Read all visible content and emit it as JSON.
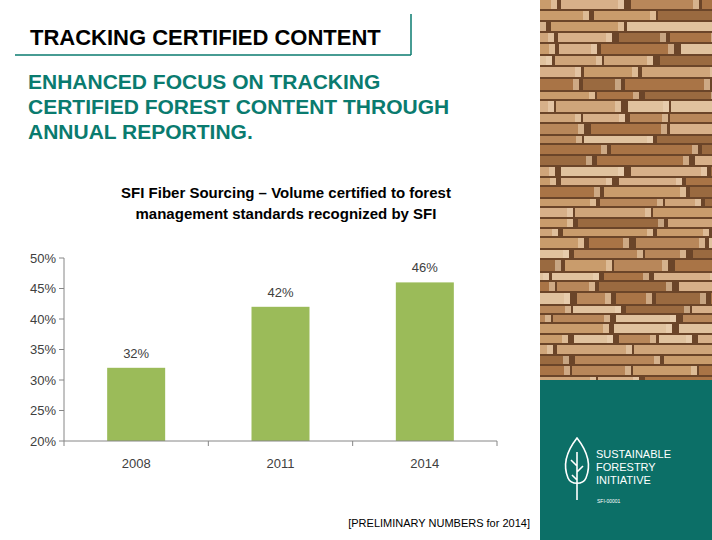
{
  "header": {
    "section": "TRACKING CERTIFIED CONTENT",
    "headline": [
      "ENHANCED FOCUS ON TRACKING",
      "CERTIFIED FOREST CONTENT THROUGH",
      "ANNUAL REPORTING."
    ]
  },
  "chart_data": {
    "type": "bar",
    "title": "SFI Fiber Sourcing – Volume certified to forest management standards recognized by SFI",
    "categories": [
      "2008",
      "2011",
      "2014"
    ],
    "values": [
      32,
      42,
      46
    ],
    "value_labels": [
      "32%",
      "42%",
      "46%"
    ],
    "color": "#9bbb59",
    "ylim": [
      20,
      50
    ],
    "yticks": [
      {
        "value": 20,
        "label": "20%"
      },
      {
        "value": 25,
        "label": "25%"
      },
      {
        "value": 30,
        "label": "30%"
      },
      {
        "value": 35,
        "label": "35%"
      },
      {
        "value": 40,
        "label": "40%"
      },
      {
        "value": 45,
        "label": "45%"
      },
      {
        "value": 50,
        "label": "50%"
      }
    ],
    "grid": false,
    "data_labels": true
  },
  "footnote": "[PRELIMINARY NUMBERS for 2014]",
  "logo": {
    "lines": [
      "SUSTAINABLE",
      "FORESTRY",
      "INITIATIVE"
    ],
    "code": "SFI-00001"
  }
}
